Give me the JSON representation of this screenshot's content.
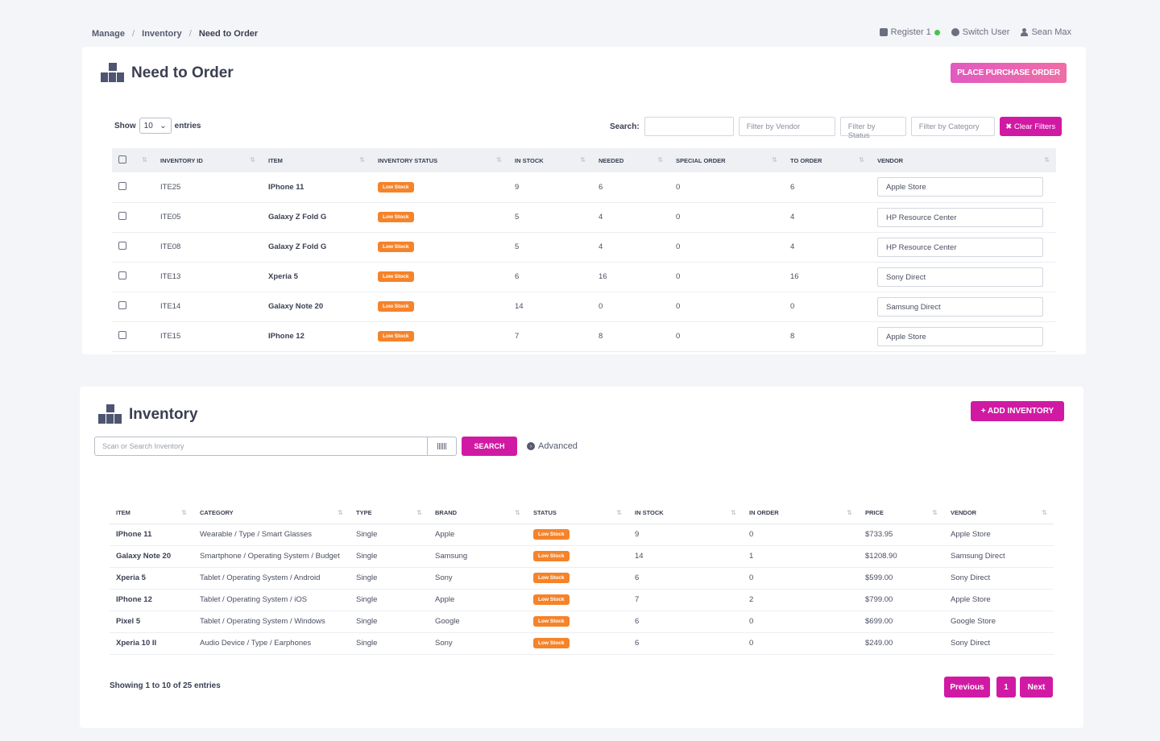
{
  "breadcrumb": {
    "items": [
      "Manage",
      "Inventory",
      "Need to Order"
    ]
  },
  "topbar": {
    "register": "Register 1",
    "switch_user": "Switch User",
    "user": "Sean Max"
  },
  "need_to_order": {
    "title": "Need to Order",
    "place_order_label": "PLACE PURCHASE ORDER",
    "show_label": "Show",
    "entries_label": "entries",
    "page_size": "10",
    "search_label": "Search:",
    "filter_vendor": "Filter by Vendor",
    "filter_status": "Filter by Status",
    "filter_category": "Filter by Category",
    "clear_filters": "✖ Clear Filters",
    "columns": [
      "INVENTORY ID",
      "ITEM",
      "INVENTORY STATUS",
      "IN STOCK",
      "NEEDED",
      "SPECIAL ORDER",
      "TO ORDER",
      "VENDOR"
    ],
    "rows": [
      {
        "id": "ITE25",
        "item": "IPhone 11",
        "status": "Low Stock",
        "in_stock": "9",
        "needed": "6",
        "special": "0",
        "to_order": "6",
        "vendor": "Apple Store"
      },
      {
        "id": "ITE05",
        "item": "Galaxy Z Fold G",
        "status": "Low Stock",
        "in_stock": "5",
        "needed": "4",
        "special": "0",
        "to_order": "4",
        "vendor": "HP Resource Center"
      },
      {
        "id": "ITE08",
        "item": "Galaxy Z Fold G",
        "status": "Low Stock",
        "in_stock": "5",
        "needed": "4",
        "special": "0",
        "to_order": "4",
        "vendor": "HP Resource Center"
      },
      {
        "id": "ITE13",
        "item": "Xperia 5",
        "status": "Low Stock",
        "in_stock": "6",
        "needed": "16",
        "special": "0",
        "to_order": "16",
        "vendor": "Sony Direct"
      },
      {
        "id": "ITE14",
        "item": "Galaxy Note 20",
        "status": "Low Stock",
        "in_stock": "14",
        "needed": "0",
        "special": "0",
        "to_order": "0",
        "vendor": "Samsung Direct"
      },
      {
        "id": "ITE15",
        "item": "IPhone 12",
        "status": "Low Stock",
        "in_stock": "7",
        "needed": "8",
        "special": "0",
        "to_order": "8",
        "vendor": "Apple Store"
      }
    ]
  },
  "inventory": {
    "title": "Inventory",
    "add_label": "+ ADD INVENTORY",
    "search_placeholder": "Scan or Search Inventory",
    "search_button": "SEARCH",
    "advanced_label": "Advanced",
    "columns": [
      "ITEM",
      "CATEGORY",
      "TYPE",
      "BRAND",
      "STATUS",
      "IN STOCK",
      "IN ORDER",
      "PRICE",
      "VENDOR"
    ],
    "rows": [
      {
        "item": "IPhone 11",
        "category": "Wearable / Type / Smart Glasses",
        "type": "Single",
        "brand": "Apple",
        "status": "Low Stock",
        "in_stock": "9",
        "in_order": "0",
        "price": "$733.95",
        "vendor": "Apple Store"
      },
      {
        "item": "Galaxy Note 20",
        "category": "Smartphone / Operating System / Budget",
        "type": "Single",
        "brand": "Samsung",
        "status": "Low Stock",
        "in_stock": "14",
        "in_order": "1",
        "price": "$1208.90",
        "vendor": "Samsung Direct"
      },
      {
        "item": "Xperia 5",
        "category": "Tablet / Operating System / Android",
        "type": "Single",
        "brand": "Sony",
        "status": "Low Stock",
        "in_stock": "6",
        "in_order": "0",
        "price": "$599.00",
        "vendor": "Sony Direct"
      },
      {
        "item": "IPhone 12",
        "category": "Tablet / Operating System / iOS",
        "type": "Single",
        "brand": "Apple",
        "status": "Low Stock",
        "in_stock": "7",
        "in_order": "2",
        "price": "$799.00",
        "vendor": "Apple Store"
      },
      {
        "item": "Pixel 5",
        "category": "Tablet / Operating System / Windows",
        "type": "Single",
        "brand": "Google",
        "status": "Low Stock",
        "in_stock": "6",
        "in_order": "0",
        "price": "$699.00",
        "vendor": "Google Store"
      },
      {
        "item": "Xperia 10 II",
        "category": "Audio Device / Type / Earphones",
        "type": "Single",
        "brand": "Sony",
        "status": "Low Stock",
        "in_stock": "6",
        "in_order": "0",
        "price": "$249.00",
        "vendor": "Sony Direct"
      }
    ],
    "showing_text": "Showing 1 to 10 of 25 entries",
    "pagination": {
      "previous": "Previous",
      "page": "1",
      "next": "Next"
    }
  },
  "colors": {
    "accent": "#d11aa4",
    "badge": "#f5832a",
    "status_online": "#45c54a"
  },
  "icons": [
    "register-icon",
    "switch-user-icon",
    "user-icon",
    "boxes-icon",
    "barcode-icon",
    "chevron-down-icon",
    "advanced-icon"
  ]
}
